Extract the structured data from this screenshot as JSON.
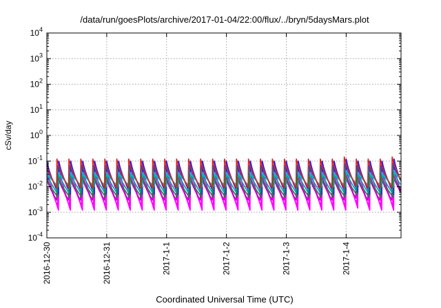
{
  "chart_data": {
    "type": "line",
    "title": "/data/run/goesPlots/archive/2017-01-04/22:00/flux/../bryn/5daysMars.plot",
    "xlabel": "Coordinated Universal Time (UTC)",
    "ylabel": "cSv/day",
    "xlim": [
      "2016-12-30",
      "2017-01-04 22:00"
    ],
    "ylim": [
      0.0001,
      10000
    ],
    "y_scale": "log",
    "grid": true,
    "legend": "none",
    "x_ticks": [
      "2016-12-30",
      "2016-12-31",
      "2017-1-1",
      "2017-1-2",
      "2017-1-3",
      "2017-1-4"
    ],
    "y_ticks": [
      {
        "value": 0.0001,
        "base": "10",
        "exp": "-4"
      },
      {
        "value": 0.001,
        "base": "10",
        "exp": "-3"
      },
      {
        "value": 0.01,
        "base": "10",
        "exp": "-2"
      },
      {
        "value": 0.1,
        "base": "10",
        "exp": "-1"
      },
      {
        "value": 1,
        "base": "10",
        "exp": "0"
      },
      {
        "value": 10,
        "base": "10",
        "exp": "1"
      },
      {
        "value": 100,
        "base": "10",
        "exp": "2"
      },
      {
        "value": 1000,
        "base": "10",
        "exp": "3"
      },
      {
        "value": 10000,
        "base": "10",
        "exp": "4"
      }
    ],
    "cycles_per_day": 5,
    "series": [
      {
        "color": "#ff00ff",
        "peak": 0.07,
        "trough": 0.0012
      },
      {
        "color": "#ff00ff",
        "peak": 0.045,
        "trough": 0.0018
      },
      {
        "color": "#c000c0",
        "peak": 0.03,
        "trough": 0.003
      },
      {
        "color": "#1a1aff",
        "peak": 0.1,
        "trough": 0.005
      },
      {
        "color": "#2050c0",
        "peak": 0.07,
        "trough": 0.008
      },
      {
        "color": "#00a0a0",
        "peak": 0.05,
        "trough": 0.006
      },
      {
        "color": "#00c0c0",
        "peak": 0.035,
        "trough": 0.01
      },
      {
        "color": "#208040",
        "peak": 0.025,
        "trough": 0.004
      },
      {
        "color": "#e02020",
        "peak": 0.12,
        "trough": 0.009
      }
    ]
  }
}
